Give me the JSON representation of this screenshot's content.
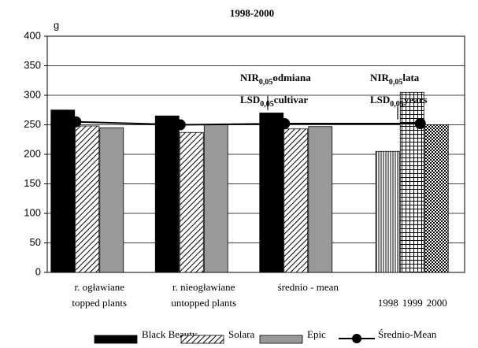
{
  "chart_data": {
    "type": "bar",
    "title": "1998-2000",
    "y_label": "g",
    "categories": [
      [
        "r. ogławiane",
        "topped plants"
      ],
      [
        "r. nieogławiane",
        "untopped plants"
      ],
      [
        "średnio - mean"
      ],
      null
    ],
    "series": [
      {
        "name": "Black Beauty",
        "color": "#000000",
        "pattern": "solid",
        "values": [
          275,
          265,
          270,
          null
        ]
      },
      {
        "name": "Solara",
        "color": "#000000",
        "pattern": "hatch",
        "values": [
          248,
          237,
          243,
          null
        ]
      },
      {
        "name": "Epic",
        "color": "#999999",
        "pattern": "solid",
        "values": [
          245,
          250,
          247,
          null
        ]
      },
      {
        "name": "Średnio-Mean",
        "color": "#000000",
        "type": "line",
        "values": [
          255,
          250,
          252,
          252
        ]
      }
    ],
    "year_bars": {
      "categories": [
        "1998",
        "1999",
        "2000"
      ],
      "values": [
        205,
        305,
        250
      ],
      "patterns": [
        "vertical",
        "grid",
        "checker"
      ]
    },
    "annotations": [
      {
        "lines": [
          {
            "main": "NIR",
            "sub": "0,05",
            "rest": "odmiana"
          },
          {
            "main": "LSD",
            "sub": "0,05",
            "rest": "cultivar"
          }
        ],
        "lsd": {
          "bottom": 275,
          "value": 24
        }
      },
      {
        "lines": [
          {
            "main": "NIR",
            "sub": "0,05",
            "rest": "lata"
          },
          {
            "main": "LSD",
            "sub": "0,05",
            "rest": "years"
          }
        ],
        "lsd": {
          "bottom": 259,
          "value": 22
        }
      }
    ],
    "ylim": [
      0,
      400
    ],
    "yticks": [
      0,
      50,
      100,
      150,
      200,
      250,
      300,
      350,
      400
    ],
    "grid": true,
    "legend": "bottom"
  }
}
